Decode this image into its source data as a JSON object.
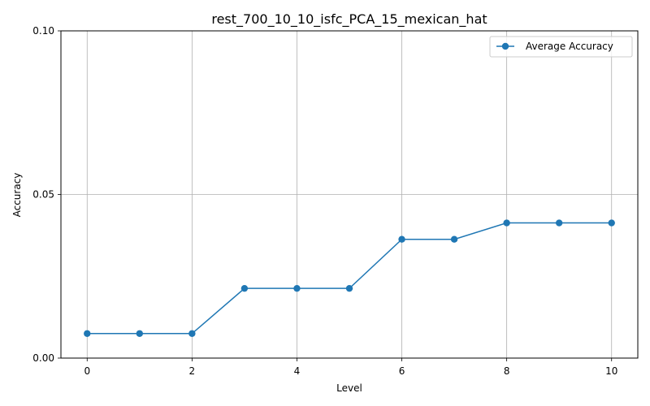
{
  "chart_data": {
    "type": "line",
    "title": "rest_700_10_10_isfc_PCA_15_mexican_hat",
    "xlabel": "Level",
    "ylabel": "Accuracy",
    "x": [
      0,
      1,
      2,
      3,
      4,
      5,
      6,
      7,
      8,
      9,
      10
    ],
    "series": [
      {
        "name": "Average Accuracy",
        "values": [
          0.0075,
          0.0075,
          0.0075,
          0.0213,
          0.0213,
          0.0213,
          0.0363,
          0.0363,
          0.0413,
          0.0413,
          0.0413
        ],
        "color": "#1f77b4",
        "marker": "circle"
      }
    ],
    "xlim": [
      -0.5,
      10.5
    ],
    "ylim": [
      0,
      0.1
    ],
    "xticks": [
      0,
      2,
      4,
      6,
      8,
      10
    ],
    "xtick_labels": [
      "0",
      "2",
      "4",
      "6",
      "8",
      "10"
    ],
    "yticks": [
      0,
      0.05,
      0.1
    ],
    "ytick_labels": [
      "0.00",
      "0.05",
      "0.10"
    ],
    "grid": true,
    "legend_position": "top-right"
  }
}
